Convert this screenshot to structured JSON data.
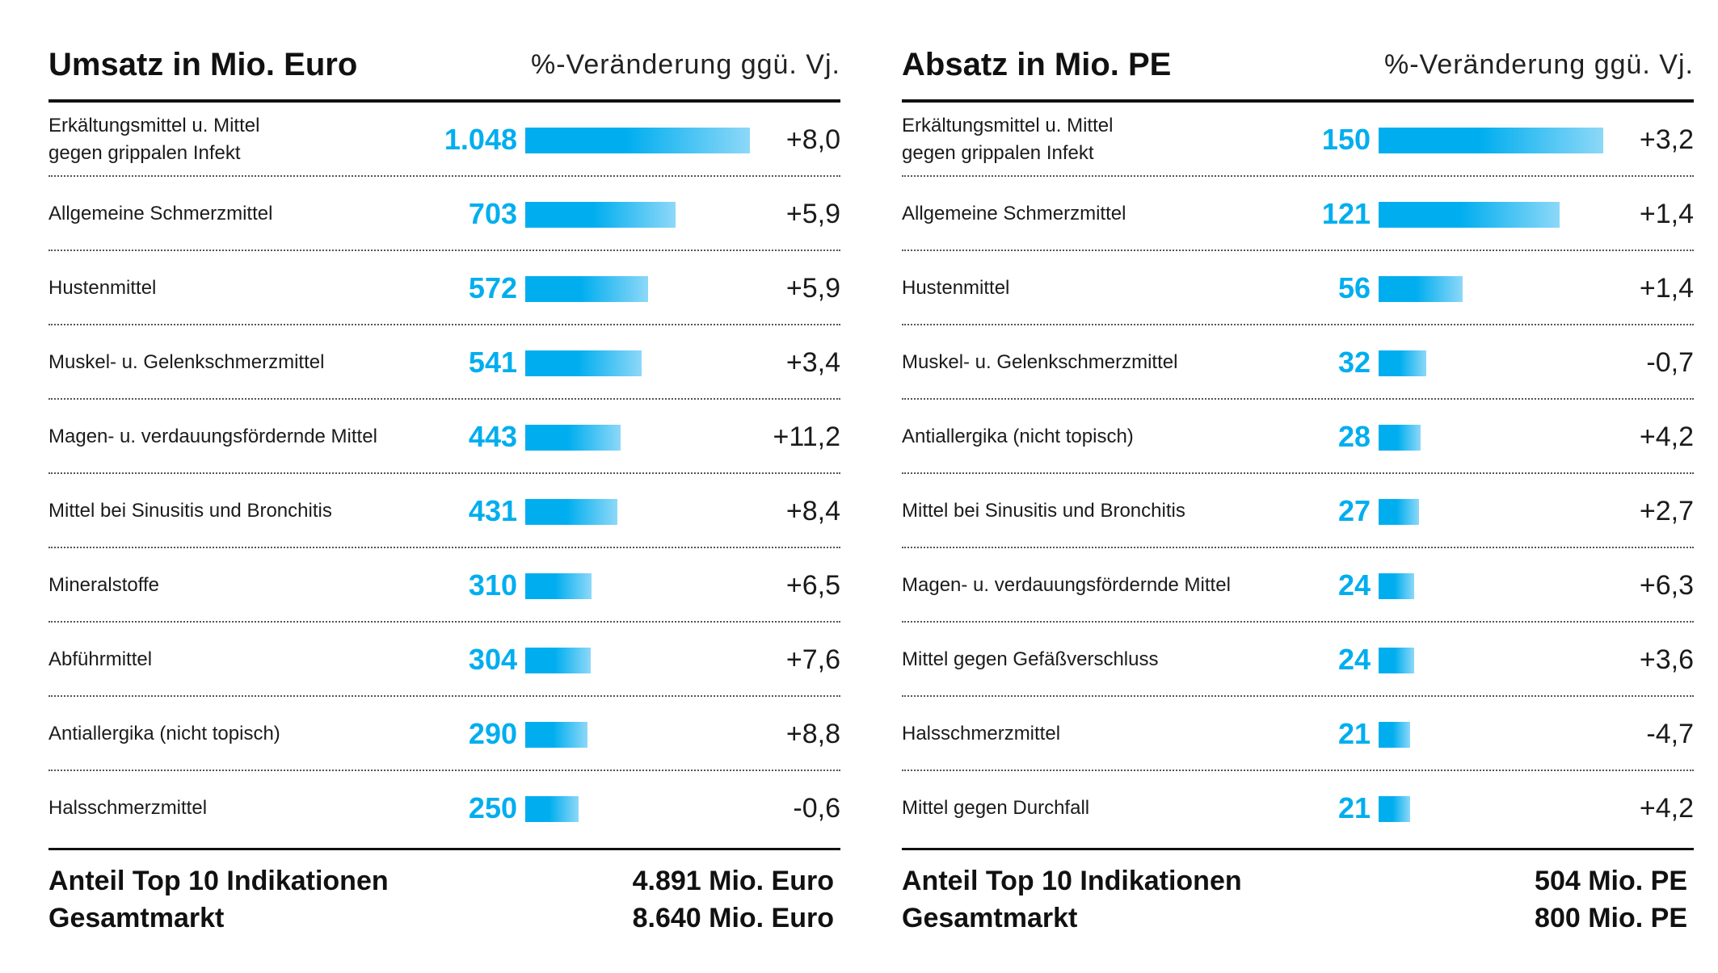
{
  "colors": {
    "accent": "#00aeef",
    "accent_light": "#8dd8f8",
    "text": "#111111"
  },
  "chart_data": [
    {
      "type": "bar",
      "title": "Umsatz in Mio. Euro",
      "subtitle": "%-Veränderung ggü. Vj.",
      "categories": [
        "Erkältungsmittel u. Mittel\ngegen grippalen Infekt",
        "Allgemeine Schmerzmittel",
        "Hustenmittel",
        "Muskel- u. Gelenkschmerzmittel",
        "Magen- u. verdauungsfördernde Mittel",
        "Mittel bei Sinusitis und Bronchitis",
        "Mineralstoffe",
        "Abführmittel",
        "Antiallergika (nicht topisch)",
        "Halsschmerzmittel"
      ],
      "values": [
        1048,
        703,
        572,
        541,
        443,
        431,
        310,
        304,
        290,
        250
      ],
      "value_labels": [
        "1.048",
        "703",
        "572",
        "541",
        "443",
        "431",
        "310",
        "304",
        "290",
        "250"
      ],
      "changes": [
        "+8,0",
        "+5,9",
        "+5,9",
        "+3,4",
        "+11,2",
        "+8,4",
        "+6,5",
        "+7,6",
        "+8,8",
        "-0,6"
      ],
      "xlim": [
        0,
        1048
      ],
      "footer": [
        {
          "label": "Anteil Top 10 Indikationen",
          "value": "4.891 Mio. Euro"
        },
        {
          "label": "Gesamtmarkt",
          "value": "8.640 Mio. Euro"
        }
      ]
    },
    {
      "type": "bar",
      "title": "Absatz in Mio. PE",
      "subtitle": "%-Veränderung ggü. Vj.",
      "categories": [
        "Erkältungsmittel u. Mittel\ngegen grippalen Infekt",
        "Allgemeine Schmerzmittel",
        "Hustenmittel",
        "Muskel- u. Gelenkschmerzmittel",
        "Antiallergika (nicht topisch)",
        "Mittel bei Sinusitis und Bronchitis",
        "Magen- u. verdauungsfördernde Mittel",
        "Mittel gegen Gefäßverschluss",
        "Halsschmerzmittel",
        "Mittel gegen Durchfall"
      ],
      "values": [
        150,
        121,
        56,
        32,
        28,
        27,
        24,
        24,
        21,
        21
      ],
      "value_labels": [
        "150",
        "121",
        "56",
        "32",
        "28",
        "27",
        "24",
        "24",
        "21",
        "21"
      ],
      "changes": [
        "+3,2",
        "+1,4",
        "+1,4",
        "-0,7",
        "+4,2",
        "+2,7",
        "+6,3",
        "+3,6",
        "-4,7",
        "+4,2"
      ],
      "xlim": [
        0,
        150
      ],
      "footer": [
        {
          "label": "Anteil Top 10 Indikationen",
          "value": "504 Mio. PE"
        },
        {
          "label": "Gesamtmarkt",
          "value": "800 Mio. PE"
        }
      ]
    }
  ]
}
